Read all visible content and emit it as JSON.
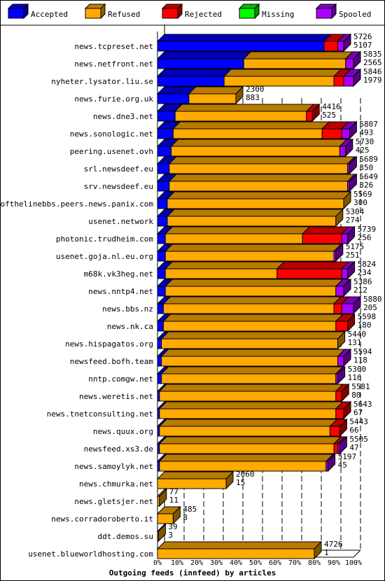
{
  "chart_data": {
    "type": "bar",
    "orientation": "horizontal",
    "stacked": true,
    "xlabel": "Outgoing feeds (innfeed) by articles",
    "x_ticks": [
      "0%",
      "10%",
      "20%",
      "30%",
      "40%",
      "50%",
      "60%",
      "70%",
      "80%",
      "90%",
      "100%"
    ],
    "xlim": [
      0,
      100
    ],
    "grid": true,
    "legend_position": "top",
    "series": [
      {
        "name": "Accepted",
        "color": "#0000ff"
      },
      {
        "name": "Refused",
        "color": "#ffaa00"
      },
      {
        "name": "Rejected",
        "color": "#ff0000"
      },
      {
        "name": "Missing",
        "color": "#00ff00"
      },
      {
        "name": "Spooled",
        "color": "#aa00ff"
      }
    ],
    "rows": [
      {
        "host": "news.tcpreset.net",
        "total": "5726",
        "accepted": "5107",
        "pct": [
          85,
          0,
          7,
          0,
          3
        ]
      },
      {
        "host": "news.netfront.net",
        "total": "5835",
        "accepted": "2565",
        "pct": [
          44,
          52,
          0,
          0,
          4
        ]
      },
      {
        "host": "nyheter.lysator.liu.se",
        "total": "5846",
        "accepted": "1979",
        "pct": [
          34,
          56,
          5,
          0,
          5
        ]
      },
      {
        "host": "news.furie.org.uk",
        "total": "2300",
        "accepted": "883",
        "pct": [
          16,
          24,
          0,
          0,
          0
        ]
      },
      {
        "host": "news.dne3.net",
        "total": "4416",
        "accepted": "525",
        "pct": [
          9,
          67,
          3,
          0,
          0
        ]
      },
      {
        "host": "news.sonologic.net",
        "total": "5807",
        "accepted": "493",
        "pct": [
          8,
          76,
          10,
          0,
          4
        ]
      },
      {
        "host": "peering.usenet.ovh",
        "total": "5730",
        "accepted": "425",
        "pct": [
          7,
          86,
          0,
          0,
          3
        ]
      },
      {
        "host": "srl.newsdeef.eu",
        "total": "5689",
        "accepted": "350",
        "pct": [
          6,
          91,
          0,
          0,
          1
        ]
      },
      {
        "host": "srv.newsdeef.eu",
        "total": "5649",
        "accepted": "326",
        "pct": [
          6,
          91,
          0,
          0,
          1
        ]
      },
      {
        "host": "endofthelinebbs.peers.news.panix.com",
        "total": "5569",
        "accepted": "300",
        "pct": [
          5,
          90,
          0,
          0,
          0
        ]
      },
      {
        "host": "usenet.network",
        "total": "5304",
        "accepted": "274",
        "pct": [
          5,
          86,
          0,
          0,
          0
        ]
      },
      {
        "host": "photonic.trudheim.com",
        "total": "5739",
        "accepted": "256",
        "pct": [
          4,
          70,
          20,
          0,
          3
        ]
      },
      {
        "host": "usenet.goja.nl.eu.org",
        "total": "5175",
        "accepted": "251",
        "pct": [
          4,
          86,
          0,
          0,
          1
        ]
      },
      {
        "host": "m68k.vk3heg.net",
        "total": "5824",
        "accepted": "234",
        "pct": [
          4,
          57,
          33,
          0,
          3
        ]
      },
      {
        "host": "news.nntp4.net",
        "total": "5386",
        "accepted": "212",
        "pct": [
          4,
          87,
          0,
          0,
          4
        ]
      },
      {
        "host": "news.bbs.nz",
        "total": "5880",
        "accepted": "205",
        "pct": [
          3,
          87,
          4,
          0,
          6
        ]
      },
      {
        "host": "news.nk.ca",
        "total": "5598",
        "accepted": "180",
        "pct": [
          3,
          88,
          6,
          0,
          0
        ]
      },
      {
        "host": "news.hispagatos.org",
        "total": "5440",
        "accepted": "131",
        "pct": [
          2,
          90,
          0,
          0,
          0
        ]
      },
      {
        "host": "newsfeed.bofh.team",
        "total": "5594",
        "accepted": "118",
        "pct": [
          2,
          90,
          0,
          0,
          3
        ]
      },
      {
        "host": "nntp.comgw.net",
        "total": "5300",
        "accepted": "116",
        "pct": [
          2,
          89,
          0,
          0,
          1
        ]
      },
      {
        "host": "news.weretis.net",
        "total": "5581",
        "accepted": "80",
        "pct": [
          1,
          90,
          3,
          0,
          0
        ]
      },
      {
        "host": "news.tnetconsulting.net",
        "total": "5643",
        "accepted": "67",
        "pct": [
          1,
          90,
          4,
          0,
          0
        ]
      },
      {
        "host": "news.quux.org",
        "total": "5443",
        "accepted": "66",
        "pct": [
          1,
          87,
          5,
          0,
          0
        ]
      },
      {
        "host": "newsfeed.xs3.de",
        "total": "5505",
        "accepted": "47",
        "pct": [
          1,
          89,
          2,
          0,
          1
        ]
      },
      {
        "host": "news.samoylyk.net",
        "total": "5197",
        "accepted": "45",
        "pct": [
          1,
          85,
          0,
          0,
          1
        ]
      },
      {
        "host": "news.chmurka.net",
        "total": "2060",
        "accepted": "15",
        "pct": [
          0,
          35,
          0,
          0,
          0
        ]
      },
      {
        "host": "news.gletsjer.net",
        "total": "77",
        "accepted": "11",
        "pct": [
          0,
          1,
          0,
          0,
          0
        ]
      },
      {
        "host": "news.corradoroberto.it",
        "total": "485",
        "accepted": "8",
        "pct": [
          0,
          8,
          0,
          0,
          0
        ]
      },
      {
        "host": "ddt.demos.su",
        "total": "39",
        "accepted": "3",
        "pct": [
          0,
          0.5,
          0,
          0,
          0
        ]
      },
      {
        "host": "usenet.blueworldhosting.com",
        "total": "4726",
        "accepted": "1",
        "pct": [
          0,
          80,
          0,
          0,
          0
        ]
      }
    ]
  }
}
